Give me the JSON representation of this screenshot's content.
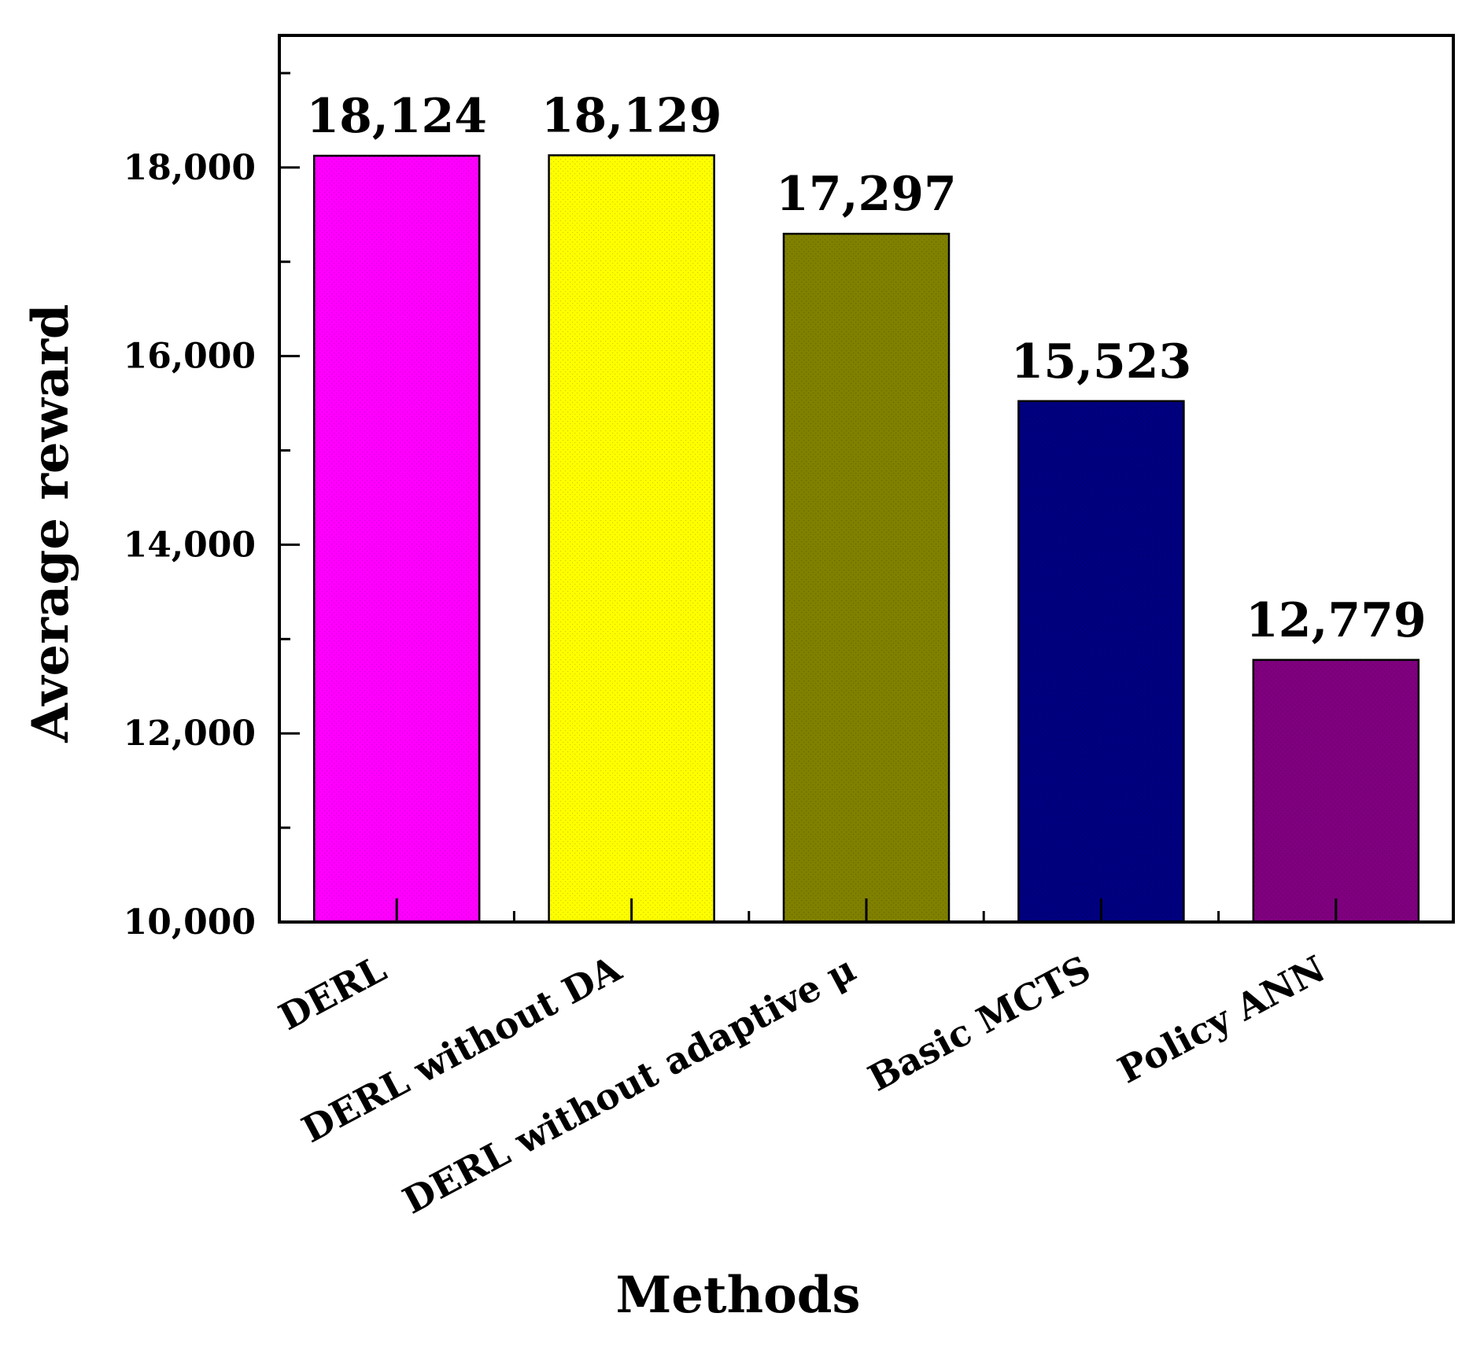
{
  "chart_data": {
    "type": "bar",
    "title": "",
    "xlabel": "Methods",
    "ylabel": "Average reward",
    "ylim": [
      10000,
      19400
    ],
    "yticks": [
      10000,
      12000,
      14000,
      16000,
      18000
    ],
    "ytick_labels": [
      "10,000",
      "12,000",
      "14,000",
      "16,000",
      "18,000"
    ],
    "categories": [
      "DERL",
      "DERL without  DA",
      "DERL without  adaptive μ",
      "Basic MCTS",
      "Policy ANN"
    ],
    "values": [
      18124,
      18129,
      17297,
      15523,
      12779
    ],
    "value_labels": [
      "18,124",
      "18,129",
      "17,297",
      "15,523",
      "12,779"
    ],
    "colors": [
      "#ff00ff",
      "#ffff00",
      "#808000",
      "#00007f",
      "#7f007f"
    ],
    "grid": false,
    "legend": "none"
  }
}
